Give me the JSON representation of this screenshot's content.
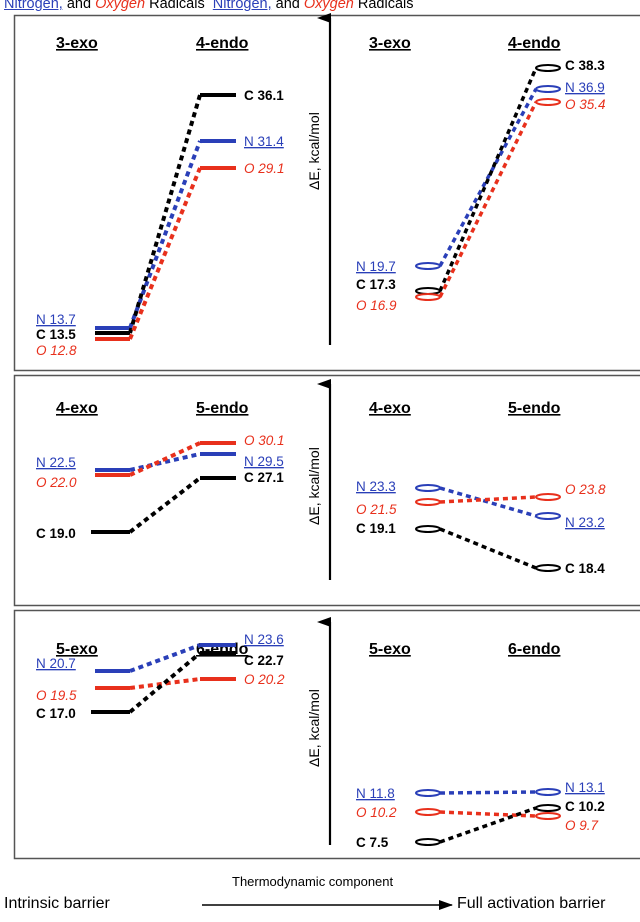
{
  "header": {
    "left_prefix": "Nitrogen,",
    "left_mid": " and ",
    "left_oxy": "Oxygen",
    "left_suffix": " Radicals",
    "right_prefix": "Nitrogen,",
    "right_mid": " and ",
    "right_oxy": "Oxygen",
    "right_suffix": " Radicals"
  },
  "axis_label": "ΔE, kcal/mol",
  "colors": {
    "C": "#000000",
    "N": "#2a3fb8",
    "O": "#e8301c",
    "frame": "#555555"
  },
  "panels": [
    {
      "left": {
        "exo_title": "3-exo",
        "endo_title": "4-endo",
        "exo": [
          {
            "el": "N",
            "label": "N",
            "value": "13.7"
          },
          {
            "el": "C",
            "label": "C",
            "value": "13.5"
          },
          {
            "el": "O",
            "label": "O",
            "value": "12.8"
          }
        ],
        "endo": [
          {
            "el": "C",
            "label": "C",
            "value": "36.1"
          },
          {
            "el": "N",
            "label": "N",
            "value": "31.4"
          },
          {
            "el": "O",
            "label": "O",
            "value": "29.1"
          }
        ]
      },
      "right": {
        "exo_title": "3-exo",
        "endo_title": "4-endo",
        "exo": [
          {
            "el": "N",
            "label": "N",
            "value": "19.7"
          },
          {
            "el": "C",
            "label": "C",
            "value": "17.3"
          },
          {
            "el": "O",
            "label": "O",
            "value": "16.9"
          }
        ],
        "endo": [
          {
            "el": "C",
            "label": "C",
            "value": "38.3"
          },
          {
            "el": "N",
            "label": "N",
            "value": "36.9"
          },
          {
            "el": "O",
            "label": "O",
            "value": "35.4"
          }
        ]
      }
    },
    {
      "left": {
        "exo_title": "4-exo",
        "endo_title": "5-endo",
        "exo": [
          {
            "el": "N",
            "label": "N",
            "value": "22.5"
          },
          {
            "el": "O",
            "label": "O",
            "value": "22.0"
          },
          {
            "el": "C",
            "label": "C",
            "value": "19.0"
          }
        ],
        "endo": [
          {
            "el": "O",
            "label": "O",
            "value": "30.1"
          },
          {
            "el": "N",
            "label": "N",
            "value": "29.5"
          },
          {
            "el": "C",
            "label": "C",
            "value": "27.1"
          }
        ]
      },
      "right": {
        "exo_title": "4-exo",
        "endo_title": "5-endo",
        "exo": [
          {
            "el": "N",
            "label": "N",
            "value": "23.3"
          },
          {
            "el": "O",
            "label": "O",
            "value": "21.5"
          },
          {
            "el": "C",
            "label": "C",
            "value": "19.1"
          }
        ],
        "endo": [
          {
            "el": "O",
            "label": "O",
            "value": "23.8"
          },
          {
            "el": "N",
            "label": "N",
            "value": "23.2"
          },
          {
            "el": "C",
            "label": "C",
            "value": "18.4"
          }
        ]
      }
    },
    {
      "left": {
        "exo_title": "5-exo",
        "endo_title": "6-endo",
        "exo": [
          {
            "el": "N",
            "label": "N",
            "value": "20.7"
          },
          {
            "el": "O",
            "label": "O",
            "value": "19.5"
          },
          {
            "el": "C",
            "label": "C",
            "value": "17.0"
          }
        ],
        "endo": [
          {
            "el": "N",
            "label": "N",
            "value": "23.6"
          },
          {
            "el": "C",
            "label": "C",
            "value": "22.7"
          },
          {
            "el": "O",
            "label": "O",
            "value": "20.2"
          }
        ]
      },
      "right": {
        "exo_title": "5-exo",
        "endo_title": "6-endo",
        "exo": [
          {
            "el": "N",
            "label": "N",
            "value": "11.8"
          },
          {
            "el": "O",
            "label": "O",
            "value": "10.2"
          },
          {
            "el": "C",
            "label": "C",
            "value": "7.5"
          }
        ],
        "endo": [
          {
            "el": "N",
            "label": "N",
            "value": "13.1"
          },
          {
            "el": "C",
            "label": "C",
            "value": "10.2"
          },
          {
            "el": "O",
            "label": "O",
            "value": "9.7"
          }
        ]
      }
    }
  ],
  "footer": {
    "left": "Intrinsic barrier",
    "arrow_label": "Thermodynamic component",
    "right": "Full activation barrier"
  }
}
